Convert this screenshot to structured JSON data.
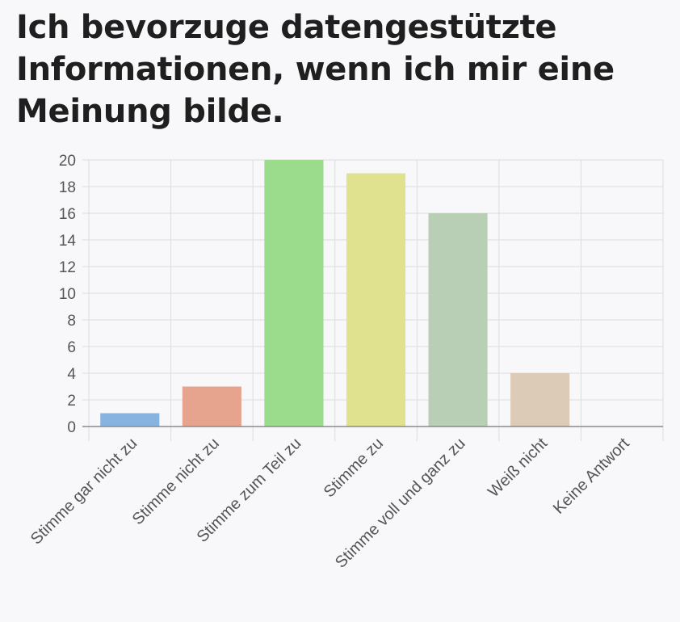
{
  "title": "Ich bevorzuge datengestützte Informationen, wenn ich mir eine Meinung bilde.",
  "chart_data": {
    "type": "bar",
    "title": "Ich bevorzuge datengestützte Informationen, wenn ich mir eine Meinung bilde.",
    "categories": [
      "Stimme gar nicht zu",
      "Stimme nicht zu",
      "Stimme zum Teil zu",
      "Stimme zu",
      "Stimme voll und ganz zu",
      "Weiß nicht",
      "Keine Antwort"
    ],
    "values": [
      1,
      3,
      20,
      19,
      16,
      4,
      0
    ],
    "colors": [
      "#86b3e0",
      "#e6a48e",
      "#9bdc8c",
      "#e0e28f",
      "#b9cfb5",
      "#dccbb7",
      "#cccccc"
    ],
    "ylim": [
      0,
      20
    ],
    "yticks": [
      0,
      2,
      4,
      6,
      8,
      10,
      12,
      14,
      16,
      18,
      20
    ],
    "grid": true,
    "xlabel": "",
    "ylabel": ""
  }
}
